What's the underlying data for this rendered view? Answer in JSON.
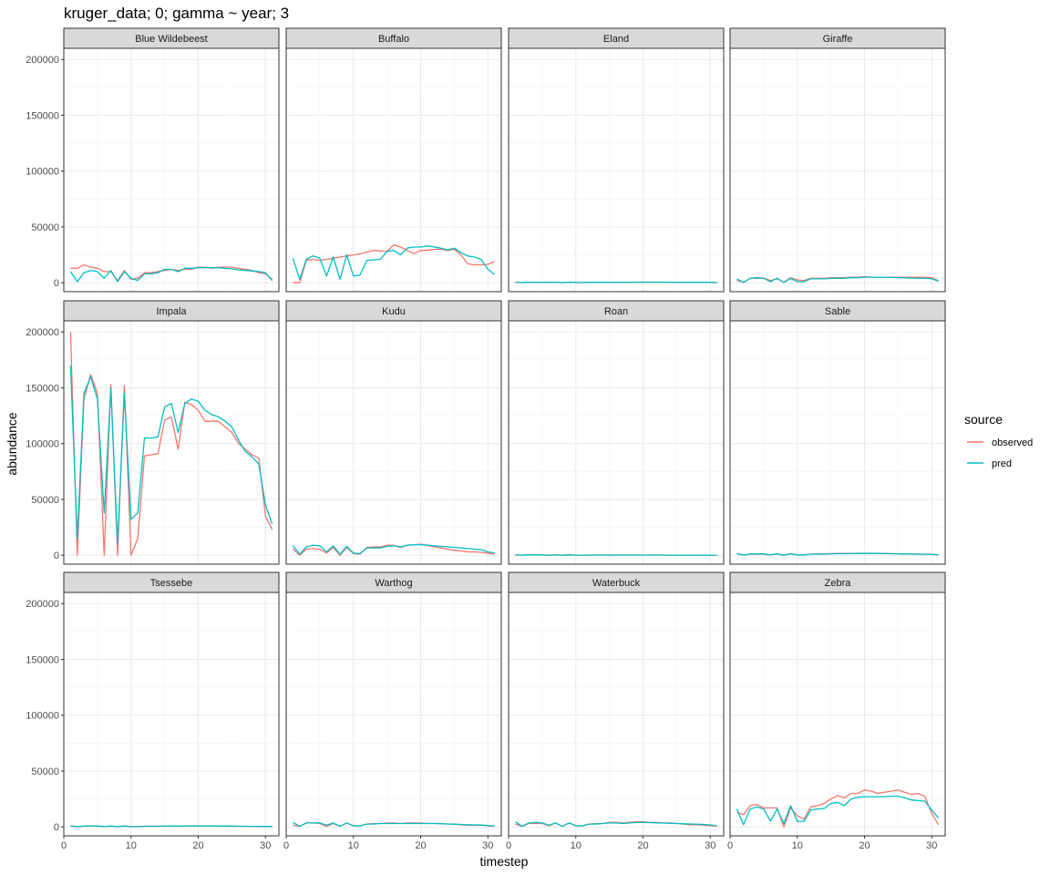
{
  "chart_data": {
    "type": "line",
    "title": "kruger_data; 0; gamma ~ year; 3",
    "xlabel": "timestep",
    "ylabel": "abundance",
    "xlim": [
      0,
      32
    ],
    "ylim": [
      -8000,
      210000
    ],
    "x_ticks": [
      0,
      10,
      20,
      30
    ],
    "y_ticks": [
      0,
      50000,
      100000,
      150000,
      200000
    ],
    "grid": true,
    "facet_layout": {
      "rows": 3,
      "cols": 4
    },
    "legend": {
      "title": "source",
      "position": "right",
      "entries": [
        {
          "label": "observed",
          "color": "#F8766D"
        },
        {
          "label": "pred",
          "color": "#00BFC4"
        }
      ]
    },
    "x": [
      1,
      2,
      3,
      4,
      5,
      6,
      7,
      8,
      9,
      10,
      11,
      12,
      13,
      14,
      15,
      16,
      17,
      18,
      19,
      20,
      21,
      22,
      23,
      24,
      25,
      26,
      27,
      28,
      29,
      30,
      31
    ],
    "facets": [
      {
        "name": "Blue Wildebeest",
        "observed": [
          13000,
          13000,
          16000,
          14000,
          13000,
          10000,
          10000,
          2000,
          11000,
          3000,
          4000,
          9000,
          9000,
          10000,
          11000,
          12000,
          11000,
          12000,
          12000,
          14000,
          14000,
          13000,
          14000,
          14000,
          14000,
          13000,
          12000,
          11000,
          9000,
          8000,
          3000
        ],
        "pred": [
          10000,
          1000,
          9000,
          11000,
          10000,
          4000,
          11000,
          1000,
          10000,
          4000,
          2000,
          8000,
          8000,
          9000,
          12000,
          12000,
          10000,
          13000,
          13000,
          13500,
          13500,
          13500,
          13500,
          13000,
          12500,
          11500,
          11000,
          10500,
          10000,
          9000,
          2000
        ]
      },
      {
        "name": "Buffalo",
        "observed": [
          0,
          0,
          20000,
          21000,
          20000,
          21000,
          22000,
          23000,
          24000,
          25000,
          26000,
          27500,
          29000,
          28500,
          28000,
          34000,
          32000,
          29000,
          26000,
          29000,
          29000,
          30000,
          30000,
          29000,
          30000,
          25000,
          17000,
          16000,
          16000,
          16500,
          19000
        ],
        "pred": [
          22000,
          3000,
          21000,
          24000,
          22000,
          6000,
          23000,
          3000,
          25000,
          6000,
          7000,
          20000,
          20500,
          21000,
          28000,
          29000,
          25000,
          31000,
          32000,
          32000,
          33000,
          32000,
          31000,
          29500,
          31000,
          27000,
          24000,
          23000,
          21000,
          12000,
          7500
        ]
      },
      {
        "name": "Eland",
        "observed": [
          500,
          200,
          400,
          400,
          400,
          300,
          400,
          200,
          400,
          300,
          200,
          300,
          300,
          300,
          400,
          400,
          400,
          500,
          500,
          600,
          600,
          600,
          500,
          500,
          500,
          400,
          400,
          400,
          300,
          300,
          200
        ],
        "pred": [
          500,
          100,
          400,
          500,
          400,
          200,
          500,
          100,
          400,
          200,
          200,
          300,
          300,
          300,
          400,
          400,
          400,
          500,
          500,
          500,
          500,
          500,
          500,
          500,
          400,
          400,
          400,
          400,
          300,
          300,
          200
        ]
      },
      {
        "name": "Giraffe",
        "observed": [
          2000,
          500,
          4000,
          4000,
          4000,
          2000,
          3500,
          500,
          4500,
          2500,
          2000,
          4000,
          4000,
          4000,
          4500,
          4500,
          4500,
          5000,
          5000,
          5500,
          5000,
          5000,
          5000,
          5000,
          5000,
          5000,
          5000,
          5000,
          5000,
          4500,
          2000
        ],
        "pred": [
          3500,
          200,
          4000,
          4500,
          4000,
          1000,
          4000,
          200,
          4000,
          1000,
          1000,
          3500,
          3500,
          3500,
          4000,
          4000,
          4000,
          4500,
          4500,
          5000,
          5000,
          5000,
          5000,
          4800,
          4600,
          4400,
          4200,
          4000,
          4000,
          3500,
          1500
        ]
      },
      {
        "name": "Impala",
        "observed": [
          200000,
          0,
          140000,
          162000,
          145000,
          0,
          153000,
          0,
          152000,
          0,
          15000,
          89000,
          90000,
          91000,
          121000,
          124000,
          95000,
          137000,
          135000,
          130000,
          120000,
          120000,
          120000,
          115000,
          110000,
          100000,
          95000,
          90000,
          87000,
          35000,
          23000
        ],
        "pred": [
          170000,
          15000,
          145000,
          160000,
          140000,
          38000,
          150000,
          10000,
          145000,
          32000,
          38000,
          105000,
          105000,
          106000,
          133000,
          136000,
          110000,
          136000,
          140000,
          138000,
          130000,
          126000,
          124000,
          120000,
          115000,
          103000,
          93000,
          88000,
          82000,
          45000,
          28000
        ]
      },
      {
        "name": "Kudu",
        "observed": [
          5500,
          0,
          5500,
          6000,
          5500,
          2000,
          7000,
          0,
          7000,
          1500,
          1000,
          7000,
          7500,
          7500,
          9000,
          9000,
          7000,
          9000,
          9500,
          10000,
          9000,
          7500,
          6500,
          5500,
          4500,
          4000,
          3000,
          3000,
          2500,
          2000,
          1000
        ],
        "pred": [
          8500,
          1000,
          7500,
          9000,
          8500,
          3000,
          8500,
          1000,
          8000,
          2000,
          1500,
          6500,
          6500,
          6500,
          8000,
          8500,
          7500,
          9000,
          9500,
          9500,
          9000,
          8500,
          8000,
          7500,
          7000,
          6500,
          6000,
          5500,
          5000,
          3000,
          2000
        ]
      },
      {
        "name": "Roan",
        "observed": [
          300,
          100,
          300,
          300,
          300,
          100,
          300,
          100,
          300,
          100,
          100,
          200,
          200,
          200,
          200,
          200,
          200,
          200,
          200,
          200,
          200,
          200,
          200,
          100,
          100,
          100,
          100,
          100,
          100,
          100,
          100
        ],
        "pred": [
          300,
          50,
          300,
          300,
          300,
          100,
          300,
          50,
          300,
          100,
          100,
          200,
          200,
          200,
          200,
          200,
          200,
          200,
          200,
          200,
          200,
          200,
          200,
          100,
          100,
          100,
          100,
          100,
          100,
          100,
          100
        ]
      },
      {
        "name": "Sable",
        "observed": [
          1200,
          300,
          1000,
          1000,
          1000,
          300,
          1200,
          300,
          1200,
          400,
          500,
          1000,
          1200,
          1200,
          1500,
          1600,
          1600,
          1700,
          1800,
          1800,
          1800,
          1700,
          1600,
          1500,
          1400,
          1300,
          1200,
          1100,
          1000,
          800,
          500
        ],
        "pred": [
          1500,
          100,
          1200,
          1300,
          1200,
          300,
          1300,
          100,
          1300,
          300,
          300,
          1000,
          1000,
          1100,
          1300,
          1400,
          1400,
          1500,
          1600,
          1600,
          1600,
          1600,
          1500,
          1400,
          1300,
          1200,
          1100,
          1000,
          900,
          700,
          400
        ]
      },
      {
        "name": "Tsessebe",
        "observed": [
          800,
          200,
          700,
          700,
          700,
          300,
          700,
          200,
          700,
          300,
          300,
          600,
          600,
          600,
          700,
          700,
          700,
          800,
          800,
          800,
          800,
          700,
          700,
          700,
          600,
          600,
          500,
          500,
          400,
          400,
          200
        ],
        "pred": [
          900,
          100,
          800,
          800,
          800,
          200,
          800,
          100,
          800,
          200,
          200,
          600,
          600,
          600,
          700,
          700,
          700,
          800,
          800,
          800,
          800,
          800,
          700,
          700,
          700,
          600,
          600,
          500,
          500,
          400,
          300
        ]
      },
      {
        "name": "Warthog",
        "observed": [
          1500,
          500,
          3500,
          3500,
          3000,
          500,
          3000,
          500,
          3500,
          1000,
          1000,
          2500,
          3000,
          3000,
          3500,
          3500,
          3000,
          3500,
          3500,
          3500,
          3000,
          3000,
          3000,
          2500,
          2500,
          2000,
          1500,
          1500,
          1500,
          1000,
          500
        ],
        "pred": [
          4000,
          500,
          3500,
          3500,
          3500,
          1500,
          3500,
          500,
          3500,
          1000,
          1000,
          2500,
          2500,
          3000,
          3000,
          3000,
          3000,
          3000,
          3000,
          3000,
          3000,
          3000,
          2800,
          2600,
          2400,
          2200,
          2000,
          1800,
          1600,
          1200,
          800
        ]
      },
      {
        "name": "Waterbuck",
        "observed": [
          2500,
          500,
          3000,
          3000,
          3000,
          1000,
          3500,
          500,
          3500,
          1000,
          1000,
          2500,
          3000,
          3000,
          4000,
          4000,
          3500,
          4000,
          4500,
          4500,
          4000,
          4000,
          3500,
          3500,
          3000,
          2500,
          2000,
          2000,
          1500,
          1200,
          600
        ],
        "pred": [
          4500,
          500,
          3500,
          4000,
          3500,
          1500,
          3500,
          500,
          3500,
          1000,
          1000,
          2500,
          2500,
          3000,
          3500,
          3500,
          3000,
          3500,
          4000,
          4000,
          3800,
          3600,
          3400,
          3200,
          3000,
          2800,
          2600,
          2400,
          2200,
          1800,
          1000
        ]
      },
      {
        "name": "Zebra",
        "observed": [
          13000,
          11000,
          19000,
          20000,
          17000,
          17000,
          17000,
          0,
          17000,
          10000,
          7000,
          18000,
          19000,
          21000,
          25000,
          28000,
          26000,
          30000,
          30000,
          33000,
          32000,
          30000,
          31000,
          32000,
          33000,
          31000,
          29000,
          30000,
          27000,
          12000,
          2000
        ],
        "pred": [
          16000,
          2000,
          16000,
          18000,
          16000,
          5000,
          16000,
          3000,
          19000,
          5000,
          5000,
          15000,
          16000,
          16500,
          21000,
          22000,
          19000,
          25000,
          26500,
          27000,
          27000,
          27000,
          27000,
          27500,
          27500,
          26000,
          24000,
          23500,
          23000,
          15000,
          8000
        ]
      }
    ]
  }
}
